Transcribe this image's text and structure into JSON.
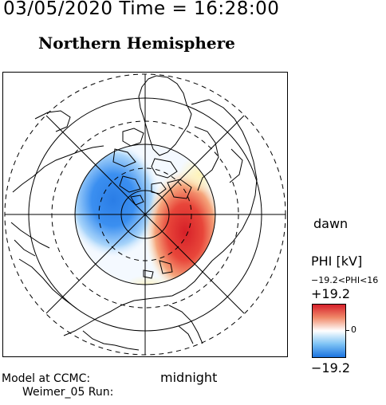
{
  "header": {
    "date_time": "03/05/2020 Time = 16:28:00",
    "hemisphere_title": "Northern Hemisphere"
  },
  "map": {
    "projection": "polar",
    "pole": "north",
    "rings_dashed_count": 3,
    "rings_solid_count": 3,
    "dawn_label": "dawn",
    "midnight_label": "midnight",
    "coastlines": true,
    "potential_pattern": {
      "positive_cell": "dawn / post-midnight sector",
      "negative_cell": "dusk / pre-midnight sector",
      "positive_color": "#d62028",
      "negative_color": "#1a73e0"
    }
  },
  "colorbar": {
    "title": "PHI [kV]",
    "range_text": "−19.2<PHI<16",
    "max_label": "+19.2",
    "zero_label": "0",
    "min_label": "−19.2",
    "max_value": 19.2,
    "min_value": -19.2,
    "colors": [
      "#d6202a",
      "#ffffff",
      "#1a73e0"
    ]
  },
  "footer": {
    "model_label": "Model at CCMC:",
    "run_label": "Weimer_05 Run:"
  }
}
